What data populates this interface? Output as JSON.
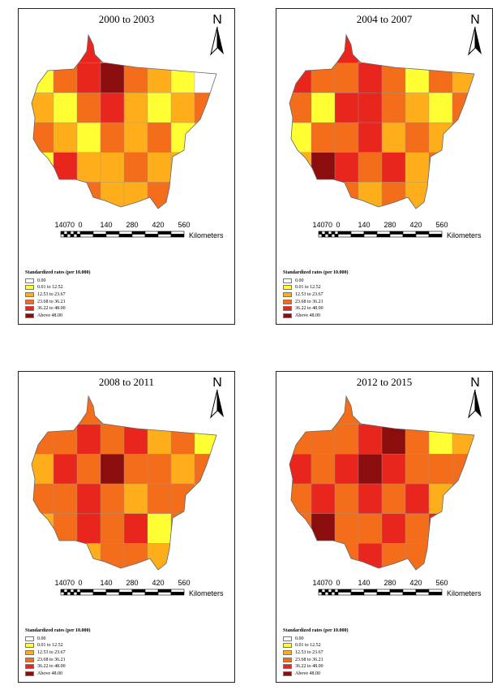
{
  "panels": [
    {
      "title": "2000 to 2003",
      "regions": [
        [
          0,
          0,
          "c2"
        ],
        [
          0,
          1,
          "c3"
        ],
        [
          0,
          2,
          "c4"
        ],
        [
          0,
          3,
          "c3"
        ],
        [
          0,
          4,
          "c2"
        ],
        [
          0,
          5,
          "c3"
        ],
        [
          0,
          6,
          "c0"
        ],
        [
          0,
          7,
          "c2"
        ],
        [
          1,
          0,
          "c1"
        ],
        [
          1,
          1,
          "c3"
        ],
        [
          1,
          2,
          "c4"
        ],
        [
          1,
          3,
          "c5"
        ],
        [
          1,
          4,
          "c3"
        ],
        [
          1,
          5,
          "c2"
        ],
        [
          1,
          6,
          "c1"
        ],
        [
          1,
          7,
          "c0"
        ],
        [
          2,
          0,
          "c2"
        ],
        [
          2,
          1,
          "c1"
        ],
        [
          2,
          2,
          "c3"
        ],
        [
          2,
          3,
          "c4"
        ],
        [
          2,
          4,
          "c2"
        ],
        [
          2,
          5,
          "c1"
        ],
        [
          2,
          6,
          "c2"
        ],
        [
          2,
          7,
          "c3"
        ],
        [
          3,
          0,
          "c3"
        ],
        [
          3,
          1,
          "c2"
        ],
        [
          3,
          2,
          "c1"
        ],
        [
          3,
          3,
          "c3"
        ],
        [
          3,
          4,
          "c2"
        ],
        [
          3,
          5,
          "c3"
        ],
        [
          3,
          6,
          "c1"
        ],
        [
          3,
          7,
          "c2"
        ],
        [
          4,
          0,
          "c1"
        ],
        [
          4,
          1,
          "c4"
        ],
        [
          4,
          2,
          "c2"
        ],
        [
          4,
          3,
          "c2"
        ],
        [
          4,
          4,
          "c3"
        ],
        [
          4,
          5,
          "c2"
        ],
        [
          4,
          6,
          "c2"
        ],
        [
          4,
          7,
          "c2"
        ],
        [
          5,
          0,
          "c2"
        ],
        [
          5,
          1,
          "c2"
        ],
        [
          5,
          2,
          "c3"
        ],
        [
          5,
          3,
          "c2"
        ],
        [
          5,
          4,
          "c2"
        ],
        [
          5,
          5,
          "c3"
        ],
        [
          5,
          6,
          "c2"
        ],
        [
          5,
          7,
          "c2"
        ]
      ]
    },
    {
      "title": "2004 to 2007",
      "regions": [
        [
          0,
          0,
          "c2"
        ],
        [
          0,
          1,
          "c3"
        ],
        [
          0,
          2,
          "c4"
        ],
        [
          0,
          3,
          "c3"
        ],
        [
          0,
          4,
          "c3"
        ],
        [
          0,
          5,
          "c3"
        ],
        [
          0,
          6,
          "c1"
        ],
        [
          0,
          7,
          "c2"
        ],
        [
          1,
          0,
          "c4"
        ],
        [
          1,
          1,
          "c3"
        ],
        [
          1,
          2,
          "c3"
        ],
        [
          1,
          3,
          "c4"
        ],
        [
          1,
          4,
          "c3"
        ],
        [
          1,
          5,
          "c1"
        ],
        [
          1,
          6,
          "c3"
        ],
        [
          1,
          7,
          "c2"
        ],
        [
          2,
          0,
          "c3"
        ],
        [
          2,
          1,
          "c1"
        ],
        [
          2,
          2,
          "c4"
        ],
        [
          2,
          3,
          "c4"
        ],
        [
          2,
          4,
          "c3"
        ],
        [
          2,
          5,
          "c2"
        ],
        [
          2,
          6,
          "c1"
        ],
        [
          2,
          7,
          "c3"
        ],
        [
          3,
          0,
          "c1"
        ],
        [
          3,
          1,
          "c3"
        ],
        [
          3,
          2,
          "c3"
        ],
        [
          3,
          3,
          "c4"
        ],
        [
          3,
          4,
          "c2"
        ],
        [
          3,
          5,
          "c3"
        ],
        [
          3,
          6,
          "c2"
        ],
        [
          3,
          7,
          "c3"
        ],
        [
          4,
          0,
          "c2"
        ],
        [
          4,
          1,
          "c5"
        ],
        [
          4,
          2,
          "c4"
        ],
        [
          4,
          3,
          "c3"
        ],
        [
          4,
          4,
          "c4"
        ],
        [
          4,
          5,
          "c2"
        ],
        [
          4,
          6,
          "c3"
        ],
        [
          4,
          7,
          "c2"
        ],
        [
          5,
          0,
          "c2"
        ],
        [
          5,
          1,
          "c3"
        ],
        [
          5,
          2,
          "c3"
        ],
        [
          5,
          3,
          "c2"
        ],
        [
          5,
          4,
          "c3"
        ],
        [
          5,
          5,
          "c2"
        ],
        [
          5,
          6,
          "c3"
        ],
        [
          5,
          7,
          "c2"
        ]
      ]
    },
    {
      "title": "2008 to 2011",
      "regions": [
        [
          0,
          0,
          "c3"
        ],
        [
          0,
          1,
          "c2"
        ],
        [
          0,
          2,
          "c3"
        ],
        [
          0,
          3,
          "c3"
        ],
        [
          0,
          4,
          "c2"
        ],
        [
          0,
          5,
          "c3"
        ],
        [
          0,
          6,
          "c2"
        ],
        [
          0,
          7,
          "c2"
        ],
        [
          1,
          0,
          "c3"
        ],
        [
          1,
          1,
          "c3"
        ],
        [
          1,
          2,
          "c4"
        ],
        [
          1,
          3,
          "c3"
        ],
        [
          1,
          4,
          "c4"
        ],
        [
          1,
          5,
          "c2"
        ],
        [
          1,
          6,
          "c3"
        ],
        [
          1,
          7,
          "c1"
        ],
        [
          2,
          0,
          "c2"
        ],
        [
          2,
          1,
          "c4"
        ],
        [
          2,
          2,
          "c3"
        ],
        [
          2,
          3,
          "c5"
        ],
        [
          2,
          4,
          "c3"
        ],
        [
          2,
          5,
          "c3"
        ],
        [
          2,
          6,
          "c2"
        ],
        [
          2,
          7,
          "c3"
        ],
        [
          3,
          0,
          "c3"
        ],
        [
          3,
          1,
          "c3"
        ],
        [
          3,
          2,
          "c4"
        ],
        [
          3,
          3,
          "c3"
        ],
        [
          3,
          4,
          "c2"
        ],
        [
          3,
          5,
          "c3"
        ],
        [
          3,
          6,
          "c3"
        ],
        [
          3,
          7,
          "c2"
        ],
        [
          4,
          0,
          "c2"
        ],
        [
          4,
          1,
          "c3"
        ],
        [
          4,
          2,
          "c4"
        ],
        [
          4,
          3,
          "c3"
        ],
        [
          4,
          4,
          "c4"
        ],
        [
          4,
          5,
          "c1"
        ],
        [
          4,
          6,
          "c3"
        ],
        [
          4,
          7,
          "c2"
        ],
        [
          5,
          0,
          "c2"
        ],
        [
          5,
          1,
          "c3"
        ],
        [
          5,
          2,
          "c2"
        ],
        [
          5,
          3,
          "c3"
        ],
        [
          5,
          4,
          "c3"
        ],
        [
          5,
          5,
          "c2"
        ],
        [
          5,
          6,
          "c4"
        ],
        [
          5,
          7,
          "c2"
        ]
      ]
    },
    {
      "title": "2012 to 2015",
      "regions": [
        [
          0,
          0,
          "c3"
        ],
        [
          0,
          1,
          "c2"
        ],
        [
          0,
          2,
          "c3"
        ],
        [
          0,
          3,
          "c3"
        ],
        [
          0,
          4,
          "c3"
        ],
        [
          0,
          5,
          "c3"
        ],
        [
          0,
          6,
          "c1"
        ],
        [
          0,
          7,
          "c0"
        ],
        [
          1,
          0,
          "c3"
        ],
        [
          1,
          1,
          "c3"
        ],
        [
          1,
          2,
          "c3"
        ],
        [
          1,
          3,
          "c4"
        ],
        [
          1,
          4,
          "c5"
        ],
        [
          1,
          5,
          "c3"
        ],
        [
          1,
          6,
          "c1"
        ],
        [
          1,
          7,
          "c2"
        ],
        [
          2,
          0,
          "c4"
        ],
        [
          2,
          1,
          "c3"
        ],
        [
          2,
          2,
          "c4"
        ],
        [
          2,
          3,
          "c5"
        ],
        [
          2,
          4,
          "c4"
        ],
        [
          2,
          5,
          "c3"
        ],
        [
          2,
          6,
          "c3"
        ],
        [
          2,
          7,
          "c3"
        ],
        [
          3,
          0,
          "c3"
        ],
        [
          3,
          1,
          "c4"
        ],
        [
          3,
          2,
          "c3"
        ],
        [
          3,
          3,
          "c4"
        ],
        [
          3,
          4,
          "c3"
        ],
        [
          3,
          5,
          "c4"
        ],
        [
          3,
          6,
          "c2"
        ],
        [
          3,
          7,
          "c3"
        ],
        [
          4,
          0,
          "c3"
        ],
        [
          4,
          1,
          "c5"
        ],
        [
          4,
          2,
          "c3"
        ],
        [
          4,
          3,
          "c3"
        ],
        [
          4,
          4,
          "c4"
        ],
        [
          4,
          5,
          "c3"
        ],
        [
          4,
          6,
          "c4"
        ],
        [
          4,
          7,
          "c3"
        ],
        [
          5,
          0,
          "c2"
        ],
        [
          5,
          1,
          "c3"
        ],
        [
          5,
          2,
          "c3"
        ],
        [
          5,
          3,
          "c4"
        ],
        [
          5,
          4,
          "c3"
        ],
        [
          5,
          5,
          "c3"
        ],
        [
          5,
          6,
          "c4"
        ],
        [
          5,
          7,
          "c2"
        ]
      ]
    }
  ],
  "north_label": "N",
  "scale": {
    "ticks": [
      "140",
      "70",
      "0",
      "140",
      "280",
      "420",
      "560"
    ],
    "unit": "Kilometers"
  },
  "legend": {
    "title": "Standardized rates (per 10.000)",
    "classes": [
      {
        "id": "c0",
        "label": "0.00",
        "color": "#ffffff"
      },
      {
        "id": "c1",
        "label": "0.01 to 12.52",
        "color": "#ffff33"
      },
      {
        "id": "c2",
        "label": "12.53 to 23.67",
        "color": "#fdae1a"
      },
      {
        "id": "c3",
        "label": "23.68 to 36.21",
        "color": "#f36d1b"
      },
      {
        "id": "c4",
        "label": "36.22 to 48.00",
        "color": "#e8261e"
      },
      {
        "id": "c5",
        "label": "Above 48.00",
        "color": "#8b0d0d"
      }
    ]
  }
}
